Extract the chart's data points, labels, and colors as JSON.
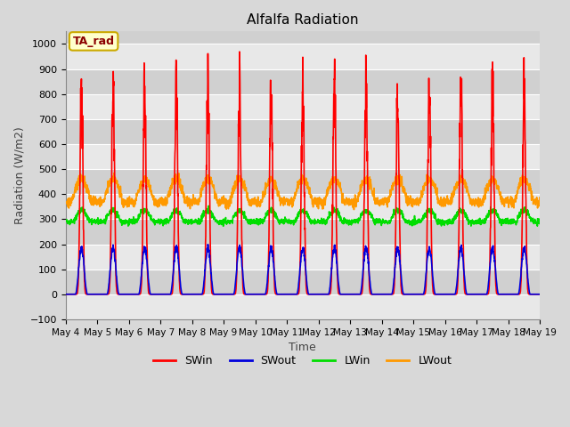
{
  "title": "Alfalfa Radiation",
  "xlabel": "Time",
  "ylabel": "Radiation (W/m2)",
  "ylim": [
    -100,
    1050
  ],
  "bg_color": "#d8d8d8",
  "plot_bg_color": "#d0d0d0",
  "grid_color": "#ffffff",
  "annotation_text": "TA_rad",
  "annotation_bg": "#ffffcc",
  "annotation_border": "#ccaa00",
  "series": {
    "SWin": {
      "color": "#ff0000",
      "lw": 1.2
    },
    "SWout": {
      "color": "#0000dd",
      "lw": 1.2
    },
    "LWin": {
      "color": "#00dd00",
      "lw": 1.2
    },
    "LWout": {
      "color": "#ff9900",
      "lw": 1.2
    }
  },
  "tick_labels": [
    "May 4",
    "May 5",
    "May 6",
    "May 7",
    "May 8",
    "May 9",
    "May 10",
    "May 11",
    "May 12",
    "May 13",
    "May 14",
    "May 15",
    "May 16",
    "May 17",
    "May 18",
    "May 19"
  ],
  "num_days": 15,
  "pts_per_day": 144
}
